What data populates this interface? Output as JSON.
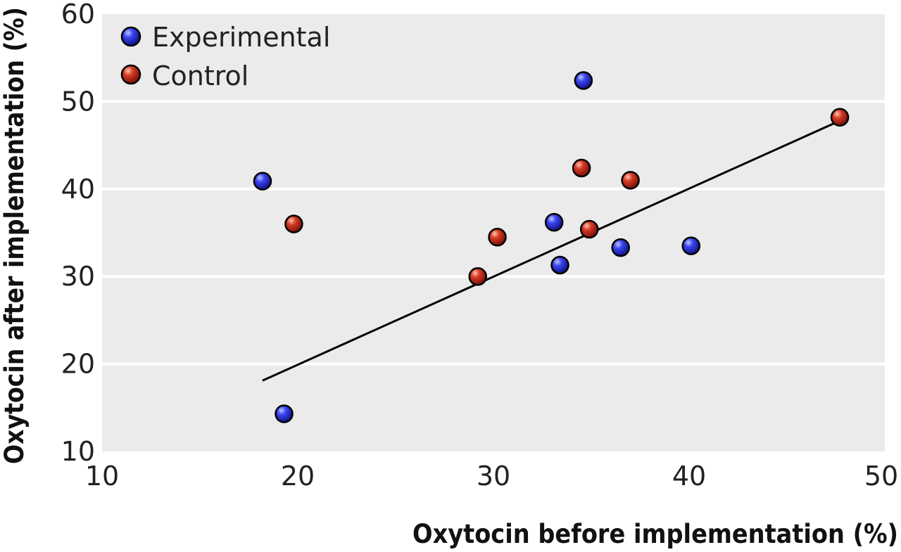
{
  "chart_data": {
    "type": "scatter",
    "xlabel": "Oxytocin before implementation (%)",
    "ylabel": "Oxytocin after implementation (%)",
    "xlim": [
      10,
      50
    ],
    "ylim": [
      10,
      60
    ],
    "xticks": [
      10,
      20,
      30,
      40,
      50
    ],
    "yticks": [
      10,
      20,
      30,
      40,
      50,
      60
    ],
    "grid": "horizontal",
    "background_color": "#ebebeb",
    "legend_position": "top-left",
    "series": [
      {
        "name": "Experimental",
        "color": "#2a2ad6",
        "points": [
          {
            "x": 34.6,
            "y": 52.4
          },
          {
            "x": 18.2,
            "y": 40.9
          },
          {
            "x": 33.1,
            "y": 36.2
          },
          {
            "x": 36.5,
            "y": 33.3
          },
          {
            "x": 40.1,
            "y": 33.5
          },
          {
            "x": 33.4,
            "y": 31.3
          },
          {
            "x": 19.3,
            "y": 14.3
          }
        ]
      },
      {
        "name": "Control",
        "color": "#c8231e",
        "points": [
          {
            "x": 47.7,
            "y": 48.2
          },
          {
            "x": 34.5,
            "y": 42.4
          },
          {
            "x": 37.0,
            "y": 41.0
          },
          {
            "x": 19.8,
            "y": 36.0
          },
          {
            "x": 30.2,
            "y": 34.5
          },
          {
            "x": 34.9,
            "y": 35.4
          },
          {
            "x": 29.2,
            "y": 30.0
          }
        ]
      }
    ],
    "trend_line": {
      "x": [
        18.2,
        47.7
      ],
      "y": [
        18.1,
        47.8
      ],
      "color": "#000000"
    }
  }
}
